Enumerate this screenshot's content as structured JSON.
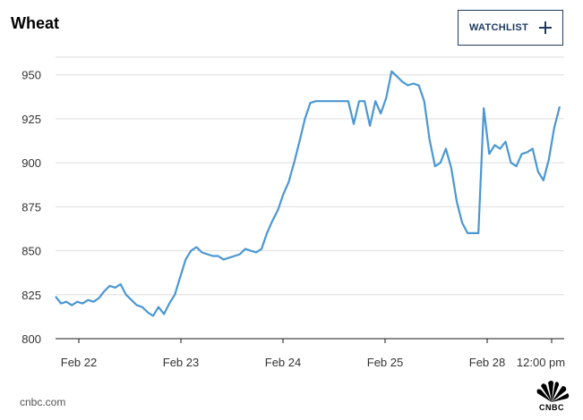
{
  "header": {
    "title": "Wheat",
    "watchlist_label": "WATCHLIST"
  },
  "footer": {
    "source": "cnbc.com",
    "logo_text": "CNBC"
  },
  "chart_data": {
    "type": "line",
    "title": "Wheat",
    "xlabel": "",
    "ylabel": "",
    "ylim": [
      800,
      960
    ],
    "grid": true,
    "y_ticks": [
      800,
      825,
      850,
      875,
      900,
      925,
      950
    ],
    "x_tick_labels": [
      "Feb 22",
      "Feb 23",
      "Feb 24",
      "Feb 25",
      "Feb 28",
      "12:00 pm"
    ],
    "series": [
      {
        "color": "#4a97d2",
        "points": [
          [
            "Feb 22",
            824
          ],
          [
            "",
            820
          ],
          [
            "",
            821
          ],
          [
            "",
            819
          ],
          [
            "",
            821
          ],
          [
            "",
            820
          ],
          [
            "",
            822
          ],
          [
            "",
            821
          ],
          [
            "",
            823
          ],
          [
            "",
            827
          ],
          [
            "",
            830
          ],
          [
            "",
            829
          ],
          [
            "",
            831
          ],
          [
            "",
            825
          ],
          [
            "",
            822
          ],
          [
            "",
            819
          ],
          [
            "",
            818
          ],
          [
            "",
            815
          ],
          [
            "",
            813
          ],
          [
            "",
            818
          ],
          [
            "",
            814
          ],
          [
            "",
            820
          ],
          [
            "",
            825
          ],
          [
            "",
            835
          ],
          [
            "",
            845
          ],
          [
            "",
            850
          ],
          [
            "",
            852
          ],
          [
            "Feb 23",
            849
          ],
          [
            "",
            848
          ],
          [
            "",
            847
          ],
          [
            "",
            847
          ],
          [
            "",
            845
          ],
          [
            "",
            846
          ],
          [
            "",
            847
          ],
          [
            "",
            848
          ],
          [
            "",
            851
          ],
          [
            "",
            850
          ],
          [
            "",
            849
          ],
          [
            "",
            851
          ],
          [
            "",
            860
          ],
          [
            "",
            867
          ],
          [
            "",
            873
          ],
          [
            "",
            882
          ],
          [
            "",
            889
          ],
          [
            "",
            900
          ],
          [
            "",
            912
          ],
          [
            "",
            925
          ],
          [
            "Feb 24",
            934
          ],
          [
            "",
            935
          ],
          [
            "",
            935
          ],
          [
            "",
            935
          ],
          [
            "",
            935
          ],
          [
            "",
            935
          ],
          [
            "",
            935
          ],
          [
            "",
            935
          ],
          [
            "",
            922
          ],
          [
            "",
            935
          ],
          [
            "",
            935
          ],
          [
            "",
            921
          ],
          [
            "",
            935
          ],
          [
            "",
            928
          ],
          [
            "",
            937
          ],
          [
            "",
            952
          ],
          [
            "Feb 25",
            949
          ],
          [
            "",
            946
          ],
          [
            "",
            944
          ],
          [
            "",
            945
          ],
          [
            "",
            944
          ],
          [
            "",
            935
          ],
          [
            "",
            913
          ],
          [
            "",
            898
          ],
          [
            "",
            900
          ],
          [
            "",
            908
          ],
          [
            "",
            897
          ],
          [
            "",
            878
          ],
          [
            "",
            866
          ],
          [
            "",
            860
          ],
          [
            "",
            860
          ],
          [
            "Feb 28",
            860
          ],
          [
            "",
            931
          ],
          [
            "",
            905
          ],
          [
            "",
            910
          ],
          [
            "",
            908
          ],
          [
            "",
            912
          ],
          [
            "",
            900
          ],
          [
            "",
            898
          ],
          [
            "",
            905
          ],
          [
            "",
            906
          ],
          [
            "",
            908
          ],
          [
            "",
            895
          ],
          [
            "",
            890
          ],
          [
            "",
            902
          ],
          [
            "",
            920
          ],
          [
            "12:00 pm",
            932
          ]
        ]
      }
    ]
  }
}
